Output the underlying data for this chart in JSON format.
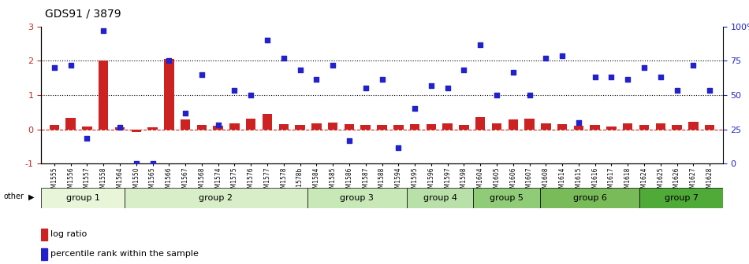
{
  "title": "GDS91 / 3879",
  "samples": [
    "GSM1555",
    "GSM1556",
    "GSM1557",
    "GSM1558",
    "GSM1564",
    "GSM1550",
    "GSM1565",
    "GSM1566",
    "GSM1567",
    "GSM1568",
    "GSM1574",
    "GSM1575",
    "GSM1576",
    "GSM1577",
    "GSM1578",
    "GSM1578b",
    "GSM1584",
    "GSM1585",
    "GSM1586",
    "GSM1587",
    "GSM1588",
    "GSM1594",
    "GSM1595",
    "GSM1596",
    "GSM1597",
    "GSM1598",
    "GSM1604",
    "GSM1605",
    "GSM1606",
    "GSM1607",
    "GSM1608",
    "GSM1614",
    "GSM1615",
    "GSM1616",
    "GSM1617",
    "GSM1618",
    "GSM1624",
    "GSM1625",
    "GSM1626",
    "GSM1627",
    "GSM1628"
  ],
  "log_ratio": [
    0.12,
    0.33,
    0.08,
    2.0,
    0.05,
    -0.08,
    0.05,
    2.05,
    0.28,
    0.12,
    0.1,
    0.18,
    0.32,
    0.45,
    0.15,
    0.12,
    0.18,
    0.2,
    0.15,
    0.12,
    0.12,
    0.13,
    0.16,
    0.15,
    0.18,
    0.12,
    0.35,
    0.18,
    0.28,
    0.32,
    0.18,
    0.15,
    0.1,
    0.12,
    0.08,
    0.18,
    0.12,
    0.18,
    0.12,
    0.22,
    0.12
  ],
  "percentile": [
    2.1,
    2.15,
    0.55,
    2.9,
    0.8,
    0.0,
    0.0,
    2.25,
    1.1,
    1.95,
    0.85,
    1.6,
    1.5,
    2.7,
    2.3,
    2.05,
    1.85,
    2.15,
    0.5,
    1.65,
    1.85,
    0.35,
    1.2,
    1.7,
    1.65,
    2.05,
    2.6,
    1.5,
    2.0,
    1.5,
    2.3,
    2.35,
    0.9,
    1.9,
    1.9,
    1.85,
    2.1,
    1.9,
    1.6,
    2.15,
    1.6
  ],
  "groups": [
    {
      "name": "group 1",
      "start": 0,
      "end": 5,
      "color": "#d8f0c0"
    },
    {
      "name": "group 2",
      "start": 5,
      "end": 16,
      "color": "#c8e8b0"
    },
    {
      "name": "group 3",
      "start": 16,
      "end": 22,
      "color": "#b8e0a0"
    },
    {
      "name": "group 4",
      "start": 22,
      "end": 26,
      "color": "#a8d890"
    },
    {
      "name": "group 5",
      "start": 26,
      "end": 30,
      "color": "#90cc70"
    },
    {
      "name": "group 6",
      "start": 30,
      "end": 36,
      "color": "#70bb50"
    },
    {
      "name": "group 7",
      "start": 36,
      "end": 41,
      "color": "#50aa30"
    }
  ],
  "bar_color": "#cc2222",
  "dot_color": "#2222cc",
  "ylim_left": [
    -1,
    3
  ],
  "ylim_right": [
    0,
    100
  ],
  "yticks_left": [
    -1,
    0,
    1,
    2,
    3
  ],
  "yticks_right": [
    0,
    25,
    50,
    75,
    100
  ],
  "dotted_lines": [
    1.0,
    2.0
  ],
  "dashed_zero": 0.0
}
